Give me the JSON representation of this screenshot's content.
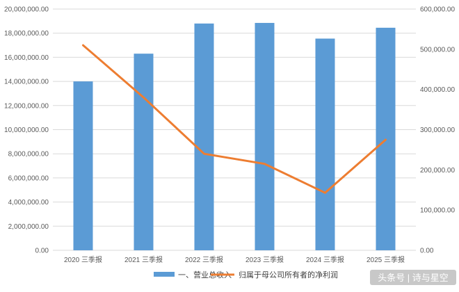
{
  "chart_data": {
    "type": "bar",
    "title": "",
    "categories": [
      "2020 三季报",
      "2021 三季报",
      "2022 三季报",
      "2023 三季报",
      "2024 三季报",
      "2025 三季报"
    ],
    "series": [
      {
        "name": "一、营业总收入",
        "type": "bar",
        "axis": "left",
        "color": "#5B9BD5",
        "values": [
          14000000,
          16300000,
          18800000,
          18850000,
          17550000,
          18450000
        ]
      },
      {
        "name": "归属于母公司所有者的净利润",
        "type": "line",
        "axis": "right",
        "color": "#ED7D31",
        "values": [
          510000,
          380000,
          240000,
          215000,
          143000,
          275000
        ]
      }
    ],
    "y_left": {
      "ylim": [
        0,
        20000000
      ],
      "ticks": [
        "0.00",
        "2,000,000.00",
        "4,000,000.00",
        "6,000,000.00",
        "8,000,000.00",
        "10,000,000.00",
        "12,000,000.00",
        "14,000,000.00",
        "16,000,000.00",
        "18,000,000.00",
        "20,000,000.00"
      ]
    },
    "y_right": {
      "ylim": [
        0,
        600000
      ],
      "ticks": [
        "0.00",
        "100,000.00",
        "200,000.00",
        "300,000.00",
        "400,000.00",
        "500,000.00",
        "600,000.00"
      ]
    },
    "grid": true,
    "legend_position": "bottom"
  },
  "watermark": {
    "text": "头条号 | 诗与星空"
  }
}
